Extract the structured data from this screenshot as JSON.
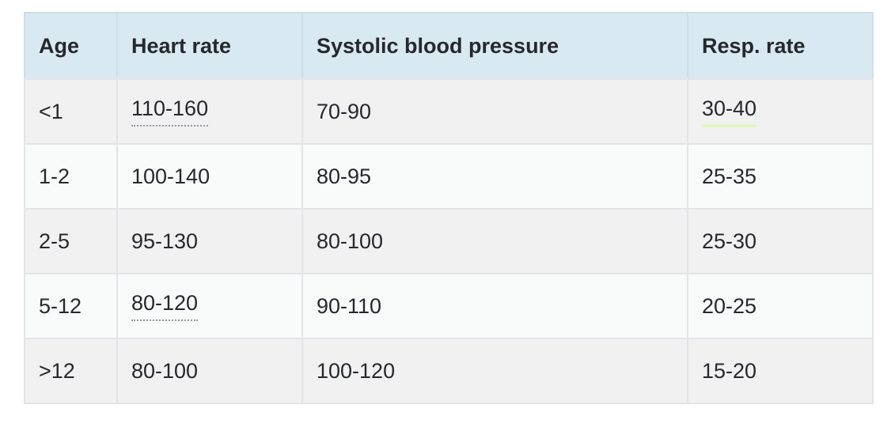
{
  "table": {
    "columns": [
      "Age",
      "Heart rate",
      "Systolic blood pressure",
      "Resp. rate"
    ],
    "rows": [
      [
        "<1",
        "110-160",
        "70-90",
        "30-40"
      ],
      [
        "1-2",
        "100-140",
        "80-95",
        "25-35"
      ],
      [
        "2-5",
        "95-130",
        "80-100",
        "25-30"
      ],
      [
        "5-12",
        "80-120",
        "90-110",
        "20-25"
      ],
      [
        ">12",
        "80-100",
        "100-120",
        "15-20"
      ]
    ],
    "decorations": [
      {
        "row": 0,
        "column": "Heart rate",
        "value": "110-160",
        "style": "dotted-underline",
        "color": "#95989c"
      },
      {
        "row": 3,
        "column": "Heart rate",
        "value": "80-120",
        "style": "dotted-underline",
        "color": "#95989c"
      },
      {
        "row": 0,
        "column": "Resp. rate",
        "value": "30-40",
        "style": "solid-green-underline",
        "color": "#e2f6c4"
      }
    ]
  },
  "colors": {
    "header_bg": "#d9e9f2",
    "row_odd_bg": "#f1f1f2",
    "row_even_bg": "#f9fafa",
    "border": "#e2e4e8",
    "header_border": "#cfdfe9",
    "text": "#26282d",
    "dotted_underline": "#95989c",
    "green_underline": "#e2f6c4",
    "page_bg": "#ffffff"
  }
}
